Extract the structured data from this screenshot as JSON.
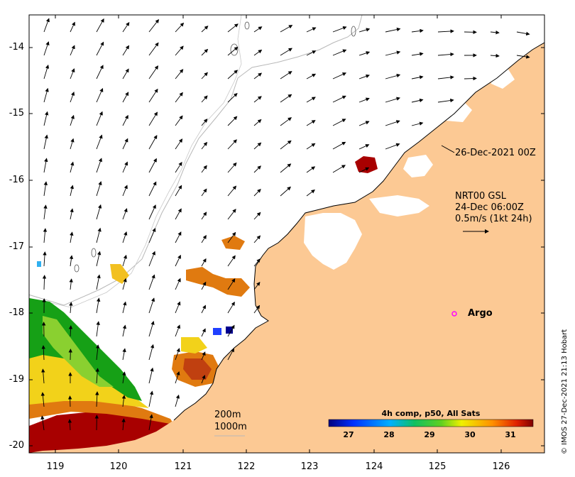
{
  "map": {
    "y_ticks": [
      "-14",
      "-15",
      "-16",
      "-17",
      "-18",
      "-19",
      "-20"
    ],
    "x_ticks": [
      "119",
      "120",
      "121",
      "122",
      "123",
      "124",
      "125",
      "126"
    ],
    "trajectory_label": "26-Dec-2021 00Z",
    "current_title_lines": [
      "NRT00 GSL",
      "24-Dec 06:00Z",
      "0.5m/s (1kt 24h)"
    ],
    "argo_label": "Argo",
    "isobath_labels": [
      "200m",
      "1000m"
    ],
    "colorbar": {
      "title": "4h comp, p50, All Sats",
      "ticks": [
        "27",
        "28",
        "29",
        "30",
        "31"
      ]
    },
    "credit": "© IMOS 27-Dec-2021 21:13 Hobart",
    "colors": {
      "land": "#fcc994",
      "argo_marker": "#ff00ff",
      "sst_hot": "#a80000",
      "sst_warm": "#e07a10",
      "sst_mid": "#f2d21a",
      "sst_cool": "#16a016"
    }
  }
}
